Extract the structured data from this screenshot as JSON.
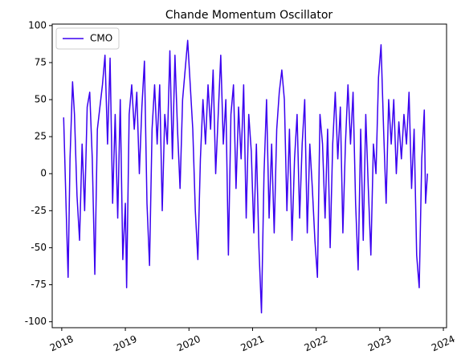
{
  "chart_data": {
    "type": "line",
    "title": "Chande Momentum Oscillator",
    "x": [
      2018.03,
      2018.07,
      2018.1,
      2018.13,
      2018.17,
      2018.2,
      2018.24,
      2018.28,
      2018.32,
      2018.36,
      2018.4,
      2018.44,
      2018.48,
      2018.52,
      2018.56,
      2018.6,
      2018.64,
      2018.68,
      2018.72,
      2018.76,
      2018.8,
      2018.84,
      2018.88,
      2018.92,
      2018.96,
      2019.0,
      2019.02,
      2019.06,
      2019.1,
      2019.14,
      2019.18,
      2019.22,
      2019.26,
      2019.3,
      2019.34,
      2019.38,
      2019.42,
      2019.46,
      2019.5,
      2019.54,
      2019.58,
      2019.62,
      2019.66,
      2019.7,
      2019.74,
      2019.78,
      2019.82,
      2019.86,
      2019.9,
      2019.94,
      2019.98,
      2020.02,
      2020.06,
      2020.1,
      2020.14,
      2020.18,
      2020.22,
      2020.26,
      2020.3,
      2020.34,
      2020.38,
      2020.42,
      2020.46,
      2020.5,
      2020.54,
      2020.58,
      2020.62,
      2020.66,
      2020.7,
      2020.74,
      2020.78,
      2020.82,
      2020.86,
      2020.9,
      2020.94,
      2020.98,
      2021.02,
      2021.06,
      2021.1,
      2021.14,
      2021.18,
      2021.22,
      2021.26,
      2021.3,
      2021.34,
      2021.38,
      2021.42,
      2021.46,
      2021.5,
      2021.54,
      2021.58,
      2021.62,
      2021.66,
      2021.7,
      2021.74,
      2021.78,
      2021.82,
      2021.86,
      2021.9,
      2021.94,
      2021.98,
      2022.02,
      2022.06,
      2022.1,
      2022.14,
      2022.18,
      2022.22,
      2022.26,
      2022.3,
      2022.34,
      2022.38,
      2022.42,
      2022.46,
      2022.5,
      2022.54,
      2022.58,
      2022.62,
      2022.66,
      2022.7,
      2022.74,
      2022.78,
      2022.82,
      2022.86,
      2022.9,
      2022.94,
      2022.98,
      2023.02,
      2023.06,
      2023.1,
      2023.14,
      2023.18,
      2023.22,
      2023.26,
      2023.3,
      2023.34,
      2023.38,
      2023.42,
      2023.46,
      2023.5,
      2023.54,
      2023.58,
      2023.62,
      2023.66,
      2023.7,
      2023.72,
      2023.75
    ],
    "series": [
      {
        "name": "CMO",
        "color": "#3a00f0",
        "values": [
          38,
          -25,
          -70,
          10,
          62,
          40,
          -15,
          -45,
          20,
          -25,
          45,
          55,
          10,
          -68,
          30,
          45,
          60,
          80,
          20,
          78,
          -20,
          40,
          -30,
          50,
          -58,
          -20,
          -77,
          40,
          60,
          30,
          55,
          0,
          45,
          76,
          -20,
          -62,
          30,
          60,
          20,
          60,
          -25,
          40,
          20,
          83,
          10,
          80,
          30,
          -10,
          50,
          70,
          90,
          60,
          30,
          -25,
          -58,
          10,
          50,
          20,
          60,
          30,
          70,
          0,
          40,
          80,
          20,
          50,
          -55,
          40,
          60,
          -10,
          45,
          10,
          60,
          -30,
          40,
          15,
          -40,
          20,
          -50,
          -94,
          0,
          50,
          -30,
          20,
          -40,
          30,
          55,
          70,
          50,
          -25,
          30,
          -45,
          10,
          40,
          -30,
          20,
          50,
          -40,
          20,
          -10,
          -45,
          -70,
          40,
          20,
          -30,
          30,
          -50,
          20,
          55,
          10,
          45,
          -40,
          20,
          60,
          20,
          55,
          -20,
          -65,
          30,
          -45,
          40,
          -10,
          -55,
          20,
          0,
          65,
          87,
          30,
          -20,
          50,
          20,
          50,
          0,
          35,
          10,
          40,
          20,
          55,
          -10,
          30,
          -55,
          -77,
          10,
          43,
          -20,
          0
        ]
      }
    ],
    "xlim": [
      2017.85,
      2024.05
    ],
    "xticks": [
      2018,
      2019,
      2020,
      2021,
      2022,
      2023,
      2024
    ],
    "ylim": [
      -104,
      101
    ],
    "yticks": [
      -100,
      -75,
      -50,
      -25,
      0,
      25,
      50,
      75,
      100
    ],
    "legend": "upper left"
  }
}
